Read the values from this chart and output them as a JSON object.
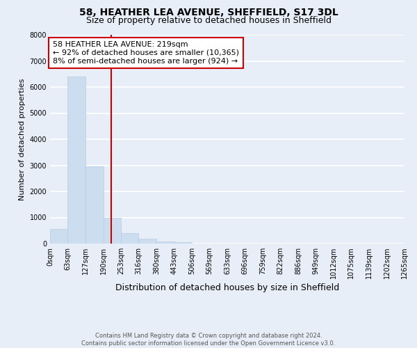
{
  "title": "58, HEATHER LEA AVENUE, SHEFFIELD, S17 3DL",
  "subtitle": "Size of property relative to detached houses in Sheffield",
  "xlabel": "Distribution of detached houses by size in Sheffield",
  "ylabel": "Number of detached properties",
  "bar_values": [
    560,
    6400,
    2950,
    1000,
    390,
    185,
    80,
    60,
    0,
    0,
    0,
    0,
    0,
    0,
    0,
    0,
    0,
    0,
    0,
    0
  ],
  "bin_edges": [
    0,
    63,
    127,
    190,
    253,
    316,
    380,
    443,
    506,
    569,
    633,
    696,
    759,
    822,
    886,
    949,
    1012,
    1075,
    1139,
    1202,
    1265
  ],
  "tick_labels": [
    "0sqm",
    "63sqm",
    "127sqm",
    "190sqm",
    "253sqm",
    "316sqm",
    "380sqm",
    "443sqm",
    "506sqm",
    "569sqm",
    "633sqm",
    "696sqm",
    "759sqm",
    "822sqm",
    "886sqm",
    "949sqm",
    "1012sqm",
    "1075sqm",
    "1139sqm",
    "1202sqm",
    "1265sqm"
  ],
  "bar_color": "#ccddf0",
  "bar_edge_color": "#b8cce4",
  "property_line_x": 219,
  "property_line_color": "#cc0000",
  "annotation_text": "58 HEATHER LEA AVENUE: 219sqm\n← 92% of detached houses are smaller (10,365)\n8% of semi-detached houses are larger (924) →",
  "annotation_box_color": "#ffffff",
  "annotation_box_edge_color": "#cc0000",
  "ylim": [
    0,
    8000
  ],
  "yticks": [
    0,
    1000,
    2000,
    3000,
    4000,
    5000,
    6000,
    7000,
    8000
  ],
  "background_color": "#e8eef8",
  "grid_color": "#ffffff",
  "footer_text": "Contains HM Land Registry data © Crown copyright and database right 2024.\nContains public sector information licensed under the Open Government Licence v3.0.",
  "title_fontsize": 10,
  "subtitle_fontsize": 9,
  "xlabel_fontsize": 9,
  "ylabel_fontsize": 8,
  "tick_fontsize": 7,
  "annotation_fontsize": 8,
  "footer_fontsize": 6
}
